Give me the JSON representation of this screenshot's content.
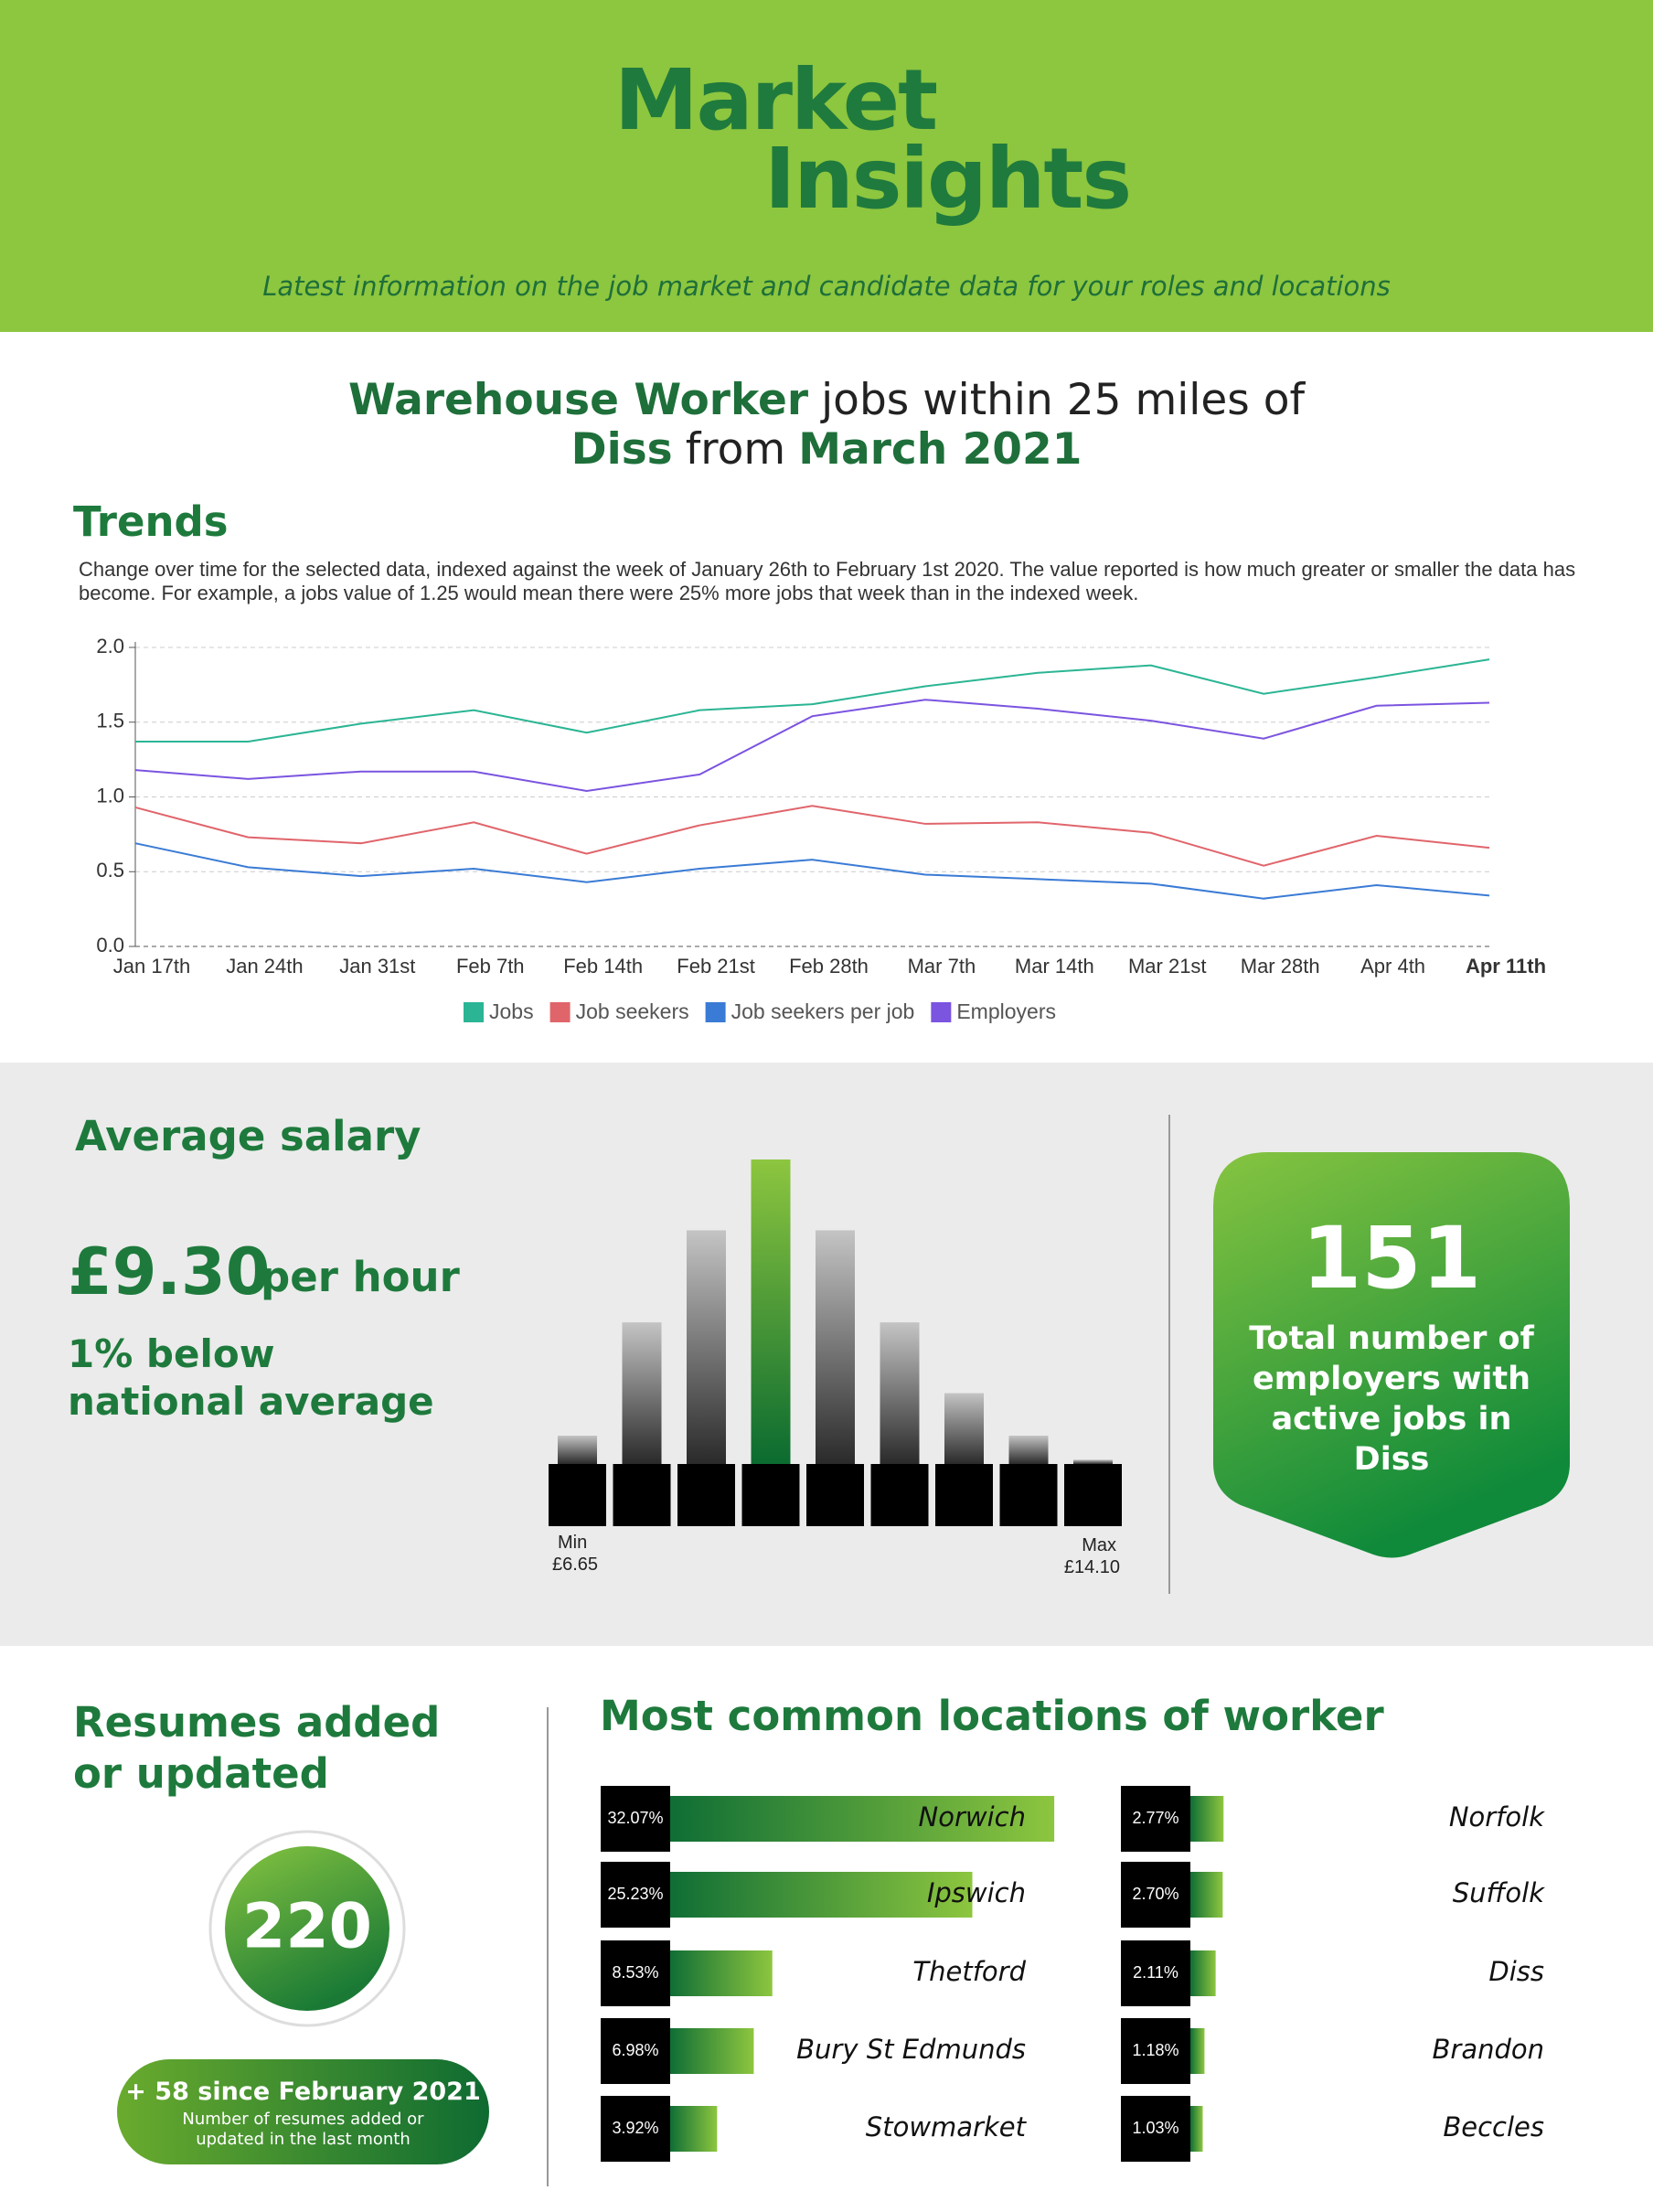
{
  "header": {
    "logo_line1": "Market",
    "logo_line2": "Insights",
    "tagline": "Latest information on the job market and candidate data for your roles and locations"
  },
  "headline": {
    "role": "Warehouse Worker",
    "radius": "jobs within 25 miles of",
    "location": "Diss",
    "from": "from",
    "period": "March 2021"
  },
  "salary": {
    "amount": "£9.30",
    "unit": "per hour",
    "comparison_line1": "1% below",
    "comparison_line2": "national average"
  },
  "employers": {
    "count": 151,
    "caption": "Total number of employers with active jobs in Diss"
  },
  "resumes": {
    "title": "Resumes added or updated",
    "count": 220,
    "change": "+ 58 since February 2021",
    "note": "Number of resumes added or updated in the last month"
  },
  "chart_data": [
    {
      "type": "line",
      "title": "Trends",
      "subtitle": "Change over time for the selected data, indexed against the week of January 26th to February 1st 2020. The value reported is how much greater or smaller the data has become. For example, a jobs value of 1.25 would mean there were 25% more jobs that week than in the indexed week.",
      "categories": [
        "Jan 17th",
        "Jan 24th",
        "Jan 31st",
        "Feb 7th",
        "Feb 14th",
        "Feb 21st",
        "Feb 28th",
        "Mar 7th",
        "Mar 14th",
        "Mar 21st",
        "Mar 28th",
        "Apr 4th",
        "Apr 11th"
      ],
      "bold_category_index": 12,
      "series": [
        {
          "name": "Jobs",
          "color": "#2bb594",
          "values": [
            1.37,
            1.37,
            1.49,
            1.58,
            1.43,
            1.58,
            1.62,
            1.74,
            1.83,
            1.88,
            1.69,
            1.8,
            1.92
          ]
        },
        {
          "name": "Job seekers",
          "color": "#e0656b",
          "values": [
            0.93,
            0.73,
            0.69,
            0.83,
            0.62,
            0.81,
            0.94,
            0.82,
            0.83,
            0.76,
            0.54,
            0.74,
            0.66
          ]
        },
        {
          "name": "Job seekers per job",
          "color": "#3a7bd5",
          "values": [
            0.69,
            0.53,
            0.47,
            0.52,
            0.43,
            0.52,
            0.58,
            0.48,
            0.45,
            0.42,
            0.32,
            0.41,
            0.34
          ]
        },
        {
          "name": "Employers",
          "color": "#7b54e0",
          "values": [
            1.18,
            1.12,
            1.17,
            1.17,
            1.04,
            1.15,
            1.54,
            1.65,
            1.59,
            1.51,
            1.39,
            1.61,
            1.63
          ]
        }
      ],
      "ylim": [
        0,
        2
      ],
      "yticks": [
        {
          "value": 0,
          "label": "0.0"
        },
        0.5,
        {
          "value": 1,
          "label": "1.0"
        },
        1.5,
        {
          "value": 2,
          "label": "2.0"
        }
      ],
      "grid": true
    },
    {
      "type": "histogram",
      "title": "Average salary",
      "values": [
        4,
        20,
        33,
        43,
        33,
        20,
        10,
        4,
        0.6
      ],
      "highlight_index": 3,
      "range_labels": [
        "Min",
        "Max"
      ],
      "range_values": [
        "£6.65",
        "£14.10"
      ]
    },
    {
      "type": "hbar",
      "title": "Most common locations of worker",
      "categories": [
        "Norwich",
        "Ipswich",
        "Thetford",
        "Bury St Edmunds",
        "Stowmarket",
        "Norfolk",
        "Suffolk",
        "Diss",
        "Brandon",
        "Beccles"
      ],
      "values": [
        32.07,
        25.23,
        8.53,
        6.98,
        3.92,
        2.77,
        2.7,
        2.11,
        1.18,
        1.03
      ],
      "value_labels": [
        "32.07%",
        "25.23%",
        "8.53%",
        "6.98%",
        "3.92%",
        "2.77%",
        "2.70%",
        "2.11%",
        "1.18%",
        "1.03%"
      ],
      "columns": 2
    }
  ]
}
